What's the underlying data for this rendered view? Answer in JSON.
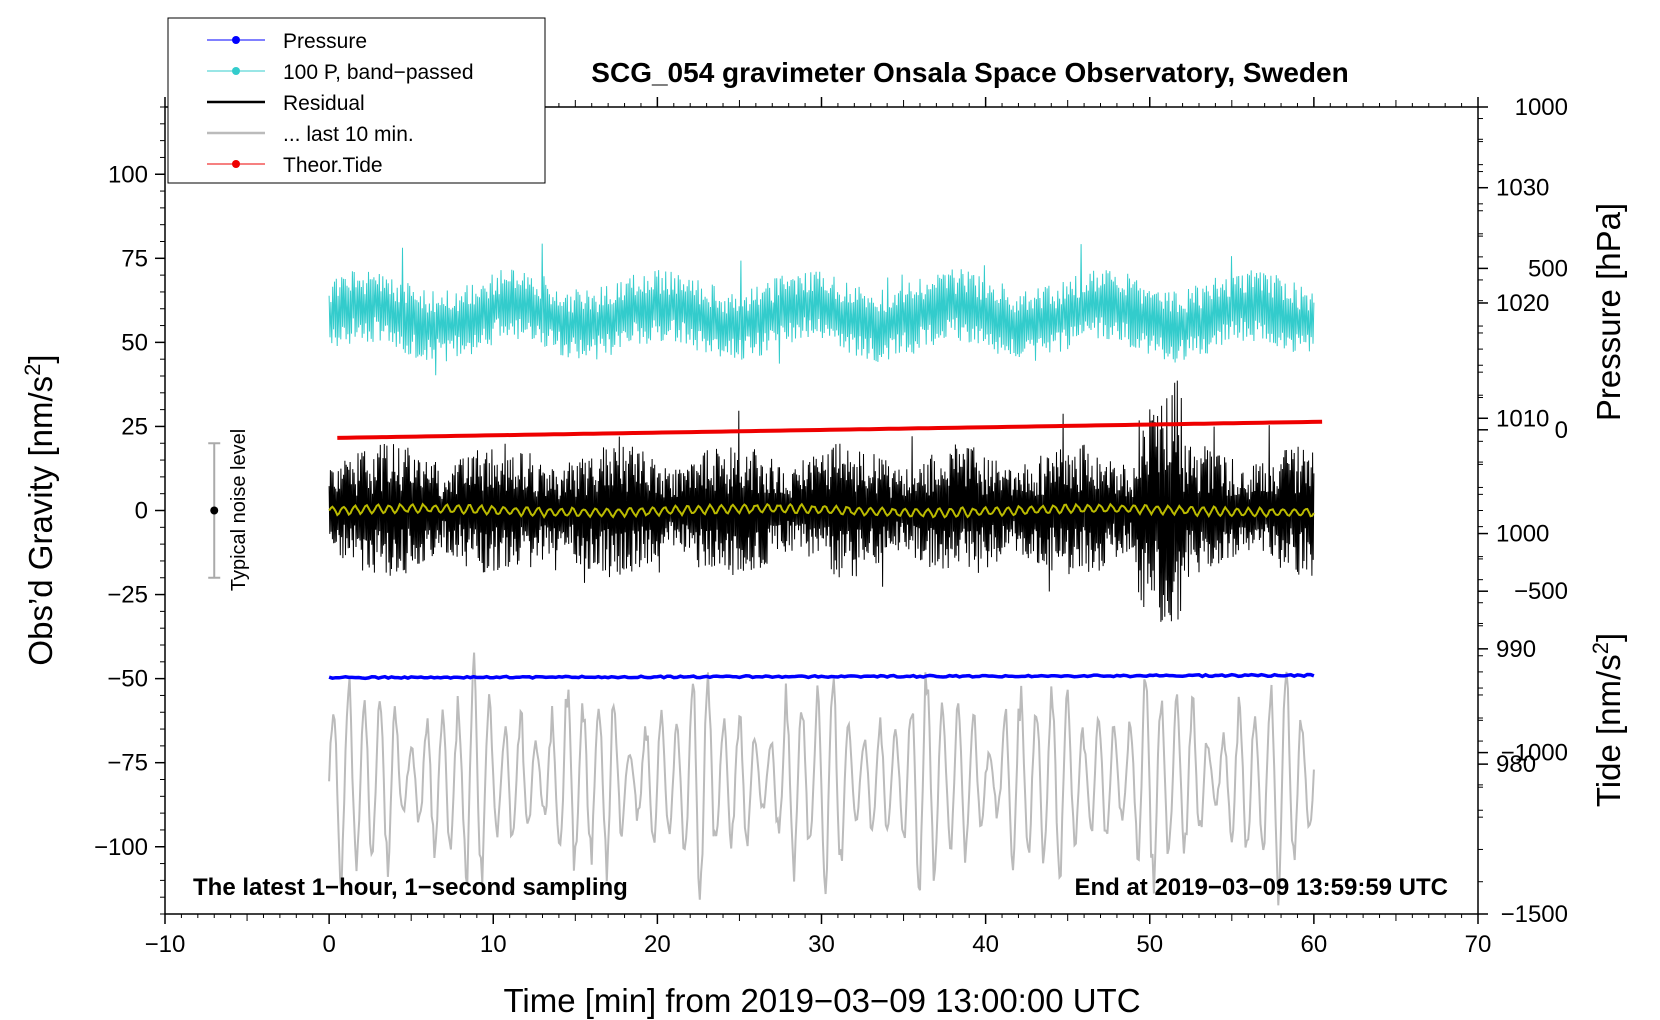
{
  "chart_data": {
    "type": "line",
    "title": "SCG_054 gravimeter Onsala Space Observatory, Sweden",
    "xlabel": "Time [min] from 2019−03−09 13:00:00 UTC",
    "ylabel_main": "Obs’d Gravity [nm/s",
    "ylabel_main_sup": "2",
    "ylabel_main_end": "]",
    "ylabel_pressure": "Pressure [hPa]",
    "ylabel_tide": "Tide [nm/s",
    "ylabel_tide_sup": "2",
    "ylabel_tide_end": "]",
    "xlim": [
      -10,
      70
    ],
    "ylim_main": [
      -120,
      120
    ],
    "pressure_lim": [
      967,
      1037
    ],
    "tide_lim": [
      -1500,
      1000
    ],
    "x_ticks": [
      -10,
      0,
      10,
      20,
      30,
      40,
      50,
      60,
      70
    ],
    "x_tick_labels": [
      "−10",
      "0",
      "10",
      "20",
      "30",
      "40",
      "50",
      "60",
      "70"
    ],
    "y_main_ticks": [
      -100,
      -75,
      -50,
      -25,
      0,
      25,
      50,
      75,
      100
    ],
    "y_main_tick_labels": [
      "−100",
      "−75",
      "−50",
      "−25",
      "0",
      "25",
      "50",
      "75",
      "100"
    ],
    "pressure_ticks": [
      980,
      990,
      1000,
      1010,
      1020,
      1030
    ],
    "pressure_tick_labels": [
      "980",
      "990",
      "1000",
      "1010",
      "1020",
      "1030"
    ],
    "tide_ticks": [
      -1500,
      -1000,
      -500,
      0,
      500,
      1000
    ],
    "tide_tick_labels": [
      "−1500",
      "−1000",
      "−500",
      "0",
      "500",
      "1000"
    ],
    "legend": [
      {
        "label": "Pressure",
        "color": "#0000ff",
        "marker": true
      },
      {
        "label": "100 P, band−passed",
        "color": "#33cccc",
        "marker": true
      },
      {
        "label": "Residual",
        "color": "#000000",
        "marker": false
      },
      {
        "label": "... last 10 min.",
        "color": "#bbbbbb",
        "marker": false
      },
      {
        "label": "Theor.Tide",
        "color": "#ee0000",
        "marker": true
      }
    ],
    "series": [
      {
        "name": "Pressure",
        "axis": "pressure",
        "color": "#0000ff",
        "x_range": [
          0,
          60
        ],
        "start_value": 987.5,
        "end_value": 987.7
      },
      {
        "name": "100 P, band−passed",
        "axis": "main",
        "color": "#33cccc",
        "x_range": [
          0,
          60
        ],
        "center": 58,
        "amplitude": 11
      },
      {
        "name": "Residual",
        "axis": "main",
        "color": "#000000",
        "x_range": [
          0,
          60
        ],
        "center": 0,
        "amplitude": 20
      },
      {
        "name": "Residual (smoothed)",
        "axis": "main",
        "color": "#bbbb00",
        "x_range": [
          0,
          60
        ],
        "center": 0,
        "amplitude": 1.5
      },
      {
        "name": "... last 10 min.",
        "axis": "main",
        "color": "#bbbbbb",
        "x_range": [
          0,
          60
        ],
        "center": -80,
        "amplitude": 20
      },
      {
        "name": "Theor.Tide",
        "axis": "tide",
        "color": "#ee0000",
        "x_range": [
          0.5,
          60.5
        ],
        "start_value": -25,
        "end_value": 25
      }
    ],
    "noise_level": {
      "label": "Typical noise level",
      "x": -7,
      "center": 0,
      "half_range": 20
    },
    "annotations": {
      "left": "The latest 1−hour, 1−second sampling",
      "right": "End at 2019−03−09 13:59:59 UTC"
    }
  }
}
